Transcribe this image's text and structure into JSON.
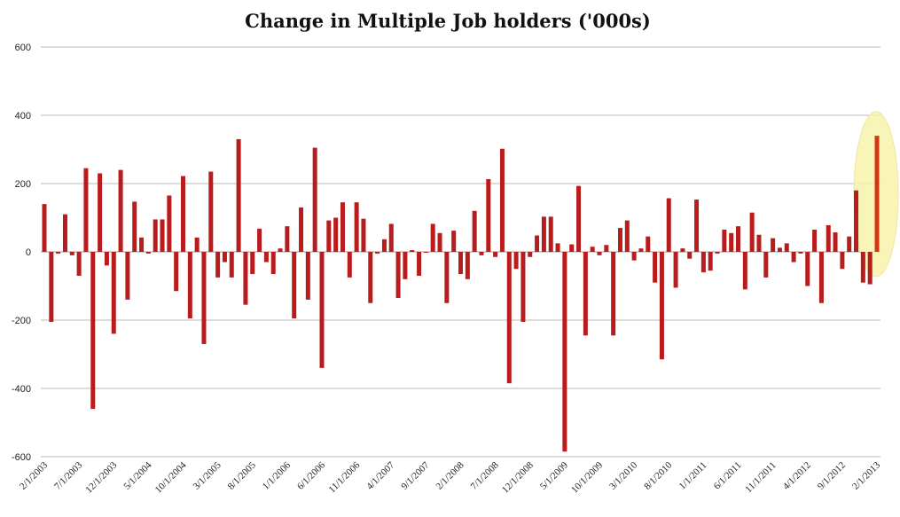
{
  "chart_data": {
    "type": "bar",
    "title": "Change in Multiple Job holders ('000s)",
    "xlabel": "",
    "ylabel": "",
    "ylim": [
      -600,
      600
    ],
    "yticks": [
      600,
      400,
      200,
      0,
      -200,
      -400,
      -600
    ],
    "grid": true,
    "legend": "none",
    "bar_color": "#b81c1c",
    "highlight_color": "#d63515",
    "highlight_ellipse_color": "#f7f2a8",
    "x_tick_labels": [
      "2/1/2003",
      "7/1/2003",
      "12/1/2003",
      "5/1/2004",
      "10/1/2004",
      "3/1/2005",
      "8/1/2005",
      "1/1/2006",
      "6/1/2006",
      "11/1/2006",
      "4/1/2007",
      "9/1/2007",
      "2/1/2008",
      "7/1/2008",
      "12/1/2008",
      "5/1/2009",
      "10/1/2009",
      "3/1/2010",
      "8/1/2010",
      "1/1/2011",
      "6/1/2011",
      "11/1/2011",
      "4/1/2012",
      "9/1/2012",
      "2/1/2013"
    ],
    "start_month": "2/1/2003",
    "end_month": "2/1/2013",
    "values": [
      140,
      -205,
      -5,
      110,
      -10,
      -70,
      245,
      -460,
      230,
      -40,
      -240,
      240,
      -140,
      147,
      42,
      -5,
      95,
      95,
      165,
      -115,
      222,
      -195,
      42,
      -270,
      235,
      -75,
      -30,
      -75,
      330,
      -155,
      -65,
      68,
      -30,
      -65,
      10,
      75,
      -195,
      130,
      -140,
      305,
      -340,
      92,
      100,
      145,
      -75,
      145,
      97,
      -150,
      -5,
      37,
      82,
      -135,
      -80,
      5,
      -70,
      0,
      82,
      55,
      -150,
      62,
      -65,
      -80,
      120,
      -10,
      213,
      -15,
      302,
      -385,
      -50,
      -205,
      -15,
      48,
      103,
      103,
      25,
      -585,
      22,
      193,
      -245,
      15,
      -10,
      20,
      -245,
      70,
      92,
      -25,
      10,
      45,
      -90,
      -315,
      157,
      -105,
      10,
      -20,
      153,
      -60,
      -55,
      -5,
      65,
      55,
      75,
      -110,
      115,
      50,
      -75,
      40,
      12,
      25,
      -30,
      -5,
      -100,
      65,
      -150,
      78,
      57,
      -50,
      45,
      180,
      -90,
      -95,
      340
    ]
  }
}
